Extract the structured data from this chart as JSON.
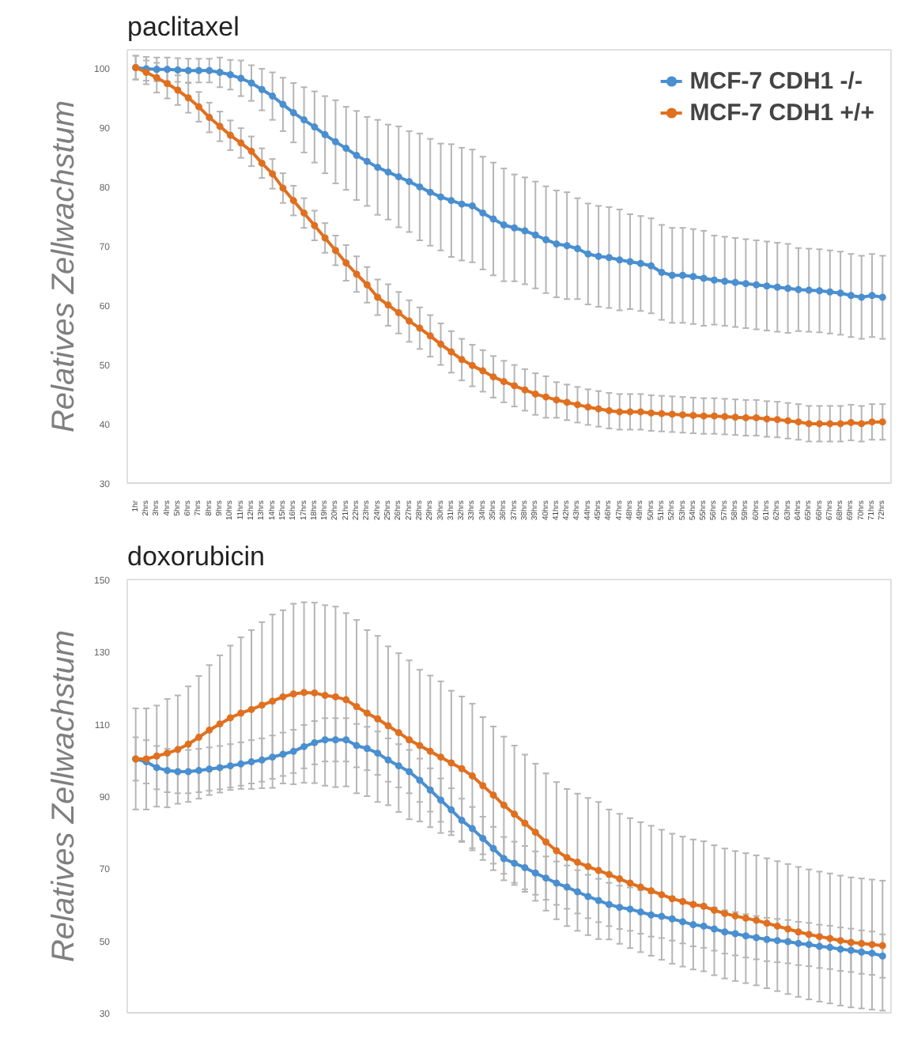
{
  "chart_data": [
    {
      "type": "line",
      "title": "paclitaxel",
      "ylabel": "Relatives Zellwachstum",
      "legend": "top right",
      "marker": "circle",
      "line_style": "solid",
      "grid": false,
      "categories": [
        "1hr",
        "2hrs",
        "3hrs",
        "4hrs",
        "5hrs",
        "6hrs",
        "7hrs",
        "8hrs",
        "9hrs",
        "10hrs",
        "11hrs",
        "12hrs",
        "13hrs",
        "14hrs",
        "15hrs",
        "16hrs",
        "17hrs",
        "18hrs",
        "19hrs",
        "20hrs",
        "21hrs",
        "22hrs",
        "23hrs",
        "24hrs",
        "25hrs",
        "26hrs",
        "27hrs",
        "28hrs",
        "29hrs",
        "30hrs",
        "31hrs",
        "32hrs",
        "33hrs",
        "34hrs",
        "35hrs",
        "36hrs",
        "37hrs",
        "38hrs",
        "39hrs",
        "40hrs",
        "41hrs",
        "42hrs",
        "43hrs",
        "44hrs",
        "45hrs",
        "46hrs",
        "47hrs",
        "48hrs",
        "49hrs",
        "50hrs",
        "51hrs",
        "52hrs",
        "53hrs",
        "54hrs",
        "55hrs",
        "56hrs",
        "57hrs",
        "58hrs",
        "59hrs",
        "60hrs",
        "61hrs",
        "62hrs",
        "63hrs",
        "64hrs",
        "65hrs",
        "66hrs",
        "67hrs",
        "68hrs",
        "69hrs",
        "70hrs",
        "71hrs",
        "72hrs"
      ],
      "ylim": [
        30,
        103
      ],
      "yticks": [
        30,
        40,
        50,
        60,
        70,
        80,
        90,
        100
      ],
      "series": [
        {
          "name": "MCF-7 CDH1 -/-",
          "color": "#4a8fd0",
          "values": [
            100,
            99.8,
            99.7,
            99.7,
            99.6,
            99.5,
            99.5,
            99.5,
            99.2,
            98.8,
            98.2,
            97.4,
            96.3,
            95.2,
            93.8,
            92.4,
            91.2,
            90,
            88.7,
            87.5,
            86.4,
            85.2,
            84.2,
            83.2,
            82.4,
            81.6,
            80.8,
            79.9,
            79,
            78.2,
            77.6,
            77,
            76.7,
            75.5,
            74.5,
            73.5,
            73,
            72.5,
            71.8,
            71,
            70.3,
            70,
            69.5,
            68.6,
            68.2,
            68,
            67.6,
            67.3,
            67,
            66.6,
            65.5,
            65,
            65,
            64.8,
            64.5,
            64.2,
            64,
            63.8,
            63.6,
            63.4,
            63.2,
            63,
            62.8,
            62.6,
            62.5,
            62.4,
            62.2,
            62,
            61.6,
            61.3,
            61.6,
            61.3
          ],
          "errors": [
            2,
            2,
            2,
            2,
            2,
            2,
            2,
            2,
            2.5,
            2.5,
            3,
            3,
            3.5,
            4,
            4.5,
            5,
            5.5,
            6,
            6.5,
            7,
            7,
            7.5,
            7.5,
            8,
            8,
            8.5,
            8.5,
            9,
            9,
            9,
            9.5,
            9.5,
            9.5,
            9.5,
            9.5,
            9.5,
            9,
            9,
            9,
            9,
            9,
            9,
            8.5,
            8.5,
            8.5,
            8.5,
            8.5,
            8,
            8,
            8,
            8,
            8,
            8,
            8,
            8,
            7.5,
            7.5,
            7.5,
            7.5,
            7.5,
            7.5,
            7.5,
            7.5,
            7,
            7,
            7,
            7,
            7,
            7,
            7,
            7,
            7
          ]
        },
        {
          "name": "MCF-7 CDH1 +/+",
          "color": "#e07020",
          "values": [
            100,
            99.2,
            98.3,
            97.3,
            96.2,
            94.9,
            93.4,
            91.6,
            90.1,
            88.6,
            87.3,
            85.9,
            83.9,
            82.1,
            79.7,
            77.6,
            75.5,
            73.4,
            71.3,
            69.2,
            67.1,
            65.2,
            63.4,
            61.3,
            60,
            58.7,
            57.3,
            56.1,
            54.8,
            53.4,
            52.1,
            50.8,
            49.8,
            48.9,
            47.9,
            47.1,
            46.4,
            45.7,
            45,
            44.5,
            44,
            43.6,
            43.2,
            42.8,
            42.5,
            42.2,
            42,
            42,
            42,
            41.8,
            41.7,
            41.6,
            41.5,
            41.4,
            41.3,
            41.3,
            41.2,
            41.1,
            41,
            41,
            40.8,
            40.7,
            40.5,
            40.3,
            40,
            40,
            40,
            40,
            40.2,
            40,
            40.3,
            40.3
          ],
          "errors": [
            2,
            2,
            2.5,
            2.5,
            2.5,
            2.5,
            2.5,
            2.5,
            2.5,
            2.5,
            2.5,
            2.5,
            2.5,
            2.5,
            2.5,
            2.5,
            2.5,
            2.5,
            2.5,
            2.5,
            3,
            3,
            3,
            3,
            3.5,
            3.5,
            3.5,
            3.5,
            3.5,
            3.5,
            3.5,
            3.5,
            3.5,
            3.5,
            3.5,
            3.5,
            3.5,
            3.5,
            3.5,
            3.5,
            3,
            3,
            3,
            3,
            3,
            3,
            3,
            3,
            3,
            3,
            3,
            3,
            3,
            3,
            3,
            3,
            3,
            3,
            3,
            3,
            3,
            3,
            3,
            3,
            3,
            3,
            3,
            3,
            3,
            3,
            3,
            3
          ]
        }
      ]
    },
    {
      "type": "line",
      "title": "doxorubicin",
      "ylabel": "Relatives Zellwachstum",
      "marker": "circle",
      "line_style": "solid",
      "grid": false,
      "categories": [
        null,
        null,
        null,
        null,
        null,
        null,
        null,
        null,
        null,
        null,
        null,
        null,
        null,
        null,
        null,
        null,
        null,
        null,
        null,
        null,
        null,
        null,
        null,
        null,
        null,
        null,
        null,
        null,
        null,
        null,
        null,
        null,
        null,
        null,
        null,
        null,
        null,
        null,
        null,
        null,
        null,
        null,
        null,
        null,
        null,
        null,
        null,
        null,
        null,
        null,
        null,
        null,
        null,
        null,
        null,
        null,
        null,
        null,
        null,
        null,
        null,
        null,
        null,
        null,
        null,
        null,
        null,
        null,
        null,
        null,
        null,
        null
      ],
      "ylim": [
        30,
        150
      ],
      "yticks": [
        30,
        50,
        70,
        90,
        110,
        130,
        150
      ],
      "series": [
        {
          "color": "#4a8fd0",
          "values": [
            100.3,
            99.5,
            97.9,
            97.1,
            96.8,
            96.8,
            97.1,
            97.5,
            97.9,
            98.4,
            98.9,
            99.5,
            100,
            100.8,
            101.6,
            102.4,
            103.7,
            104.8,
            105.6,
            105.6,
            105.6,
            104,
            103.2,
            101.9,
            100,
            98.4,
            96.8,
            94.4,
            91.7,
            88.9,
            86.2,
            83.3,
            81,
            78.3,
            75.5,
            72.7,
            71.4,
            70.2,
            68.7,
            67.3,
            65.9,
            64.8,
            63.5,
            62.2,
            61.1,
            60,
            59.2,
            58.7,
            57.9,
            57.1,
            56.7,
            56,
            55.2,
            54.4,
            54,
            53.2,
            52.4,
            51.9,
            51.3,
            50.8,
            50.3,
            50,
            49.7,
            49.2,
            48.9,
            48.4,
            48.1,
            47.6,
            47.3,
            46.8,
            46.5,
            45.7
          ],
          "errors": [
            6,
            6,
            6,
            6,
            6,
            6,
            6,
            6,
            6,
            6,
            6,
            6,
            6,
            6,
            6,
            6,
            6,
            6,
            6,
            6,
            6,
            6,
            6,
            6,
            6,
            6,
            6,
            6,
            6,
            6,
            6,
            6,
            6,
            6,
            6,
            6,
            6,
            6,
            6,
            6,
            6,
            6,
            6,
            6,
            6,
            6,
            6,
            6,
            6,
            6,
            6,
            6,
            6,
            6,
            6,
            6,
            6,
            6,
            6,
            6,
            6,
            6,
            6,
            6,
            6,
            6,
            6,
            6,
            6,
            6,
            6,
            6
          ]
        },
        {
          "color": "#e07020",
          "values": [
            100.3,
            100.3,
            101.1,
            101.9,
            102.9,
            104.4,
            106.3,
            108.3,
            110,
            111.7,
            113,
            114,
            115.2,
            116.3,
            117.5,
            118.3,
            118.7,
            118.6,
            117.9,
            117.5,
            116.7,
            114.8,
            113,
            111.4,
            109.5,
            107.6,
            105.6,
            104,
            102.4,
            100.8,
            99.2,
            97.6,
            95.6,
            92.9,
            90.3,
            87.5,
            85,
            82.5,
            80,
            77.3,
            74.9,
            73,
            71.7,
            70.5,
            69.4,
            68.3,
            67.1,
            65.9,
            64.8,
            63.8,
            62.7,
            61.6,
            60.8,
            60,
            59.5,
            58.4,
            57.5,
            56.8,
            56.2,
            55.6,
            54.8,
            54,
            53.2,
            52.4,
            51.7,
            51.1,
            50.6,
            50,
            49.5,
            49.2,
            48.9,
            48.6
          ],
          "errors": [
            14,
            14,
            14,
            15,
            15,
            16,
            17,
            18,
            19,
            20,
            21,
            22,
            23,
            24,
            24,
            25,
            25,
            25,
            25,
            25,
            24,
            24,
            23,
            23,
            22,
            22,
            22,
            21,
            21,
            21,
            20,
            20,
            20,
            19,
            19,
            19,
            19,
            19,
            19,
            19,
            19,
            19,
            19,
            19,
            19,
            18,
            18,
            18,
            18,
            18,
            18,
            18,
            18,
            18,
            18,
            18,
            18,
            18,
            18,
            18,
            18,
            18,
            18,
            18,
            18,
            18,
            18,
            18,
            18,
            18,
            18,
            18
          ]
        }
      ]
    }
  ]
}
